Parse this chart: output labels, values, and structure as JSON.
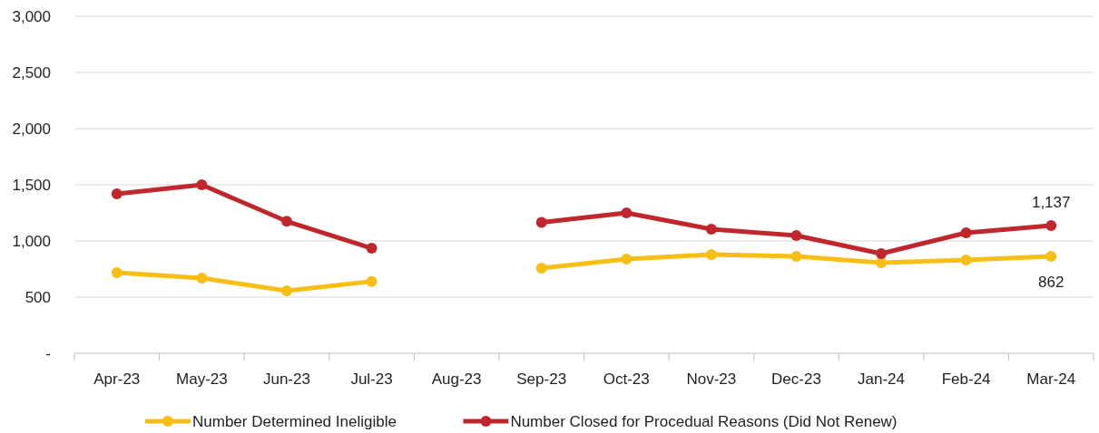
{
  "chart_data": {
    "type": "line",
    "categories": [
      "Apr-23",
      "May-23",
      "Jun-23",
      "Jul-23",
      "Aug-23",
      "Sep-23",
      "Oct-23",
      "Nov-23",
      "Dec-23",
      "Jan-24",
      "Feb-24",
      "Mar-24"
    ],
    "series": [
      {
        "name": "Number Determined Ineligible",
        "color": "#f7be16",
        "values": [
          718,
          669,
          556,
          640,
          null,
          758,
          839,
          879,
          863,
          806,
          831,
          862
        ],
        "value_labels": [
          null,
          null,
          null,
          null,
          null,
          null,
          null,
          null,
          null,
          null,
          null,
          "862"
        ]
      },
      {
        "name": "Number Closed for Procedual Reasons (Did Not Renew)",
        "color": "#c0272d",
        "values": [
          1420,
          1500,
          1175,
          935,
          null,
          1165,
          1250,
          1105,
          1048,
          887,
          1073,
          1137
        ],
        "value_labels": [
          null,
          null,
          null,
          null,
          null,
          null,
          null,
          null,
          null,
          null,
          null,
          "1,137"
        ]
      }
    ],
    "ylim": [
      0,
      3000
    ],
    "yticks": [
      {
        "value": 0,
        "label": "-"
      },
      {
        "value": 500,
        "label": "500"
      },
      {
        "value": 1000,
        "label": "1,000"
      },
      {
        "value": 1500,
        "label": "1,500"
      },
      {
        "value": 2000,
        "label": "2,000"
      },
      {
        "value": 2500,
        "label": "2,500"
      },
      {
        "value": 3000,
        "label": "3,000"
      }
    ],
    "grid": "y",
    "legend": "bottom",
    "marker": "circle",
    "line_style": "solid"
  }
}
